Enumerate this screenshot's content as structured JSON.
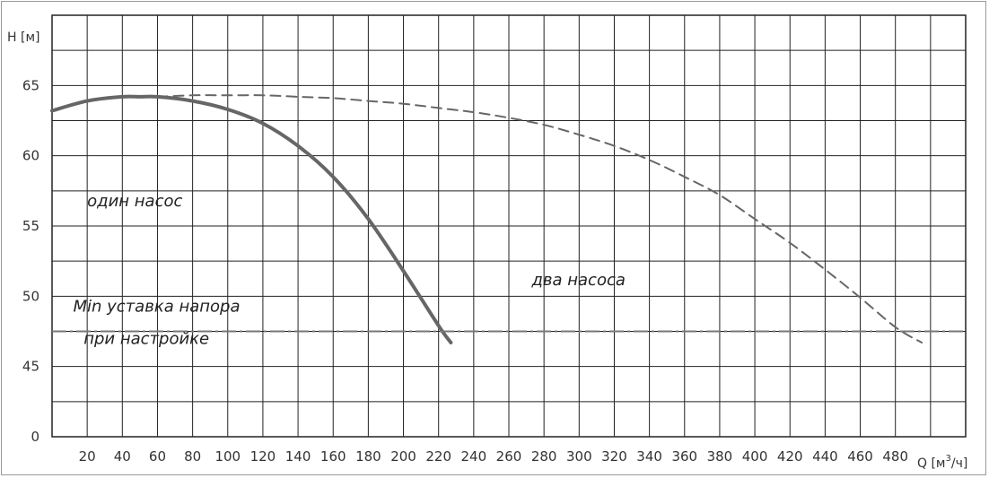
{
  "chart_data": {
    "type": "line",
    "xlabel": "Q [м",
    "xlabel_sup": "3",
    "xlabel_tail": "/ч]",
    "ylabel": "H [м]",
    "xlim": [
      0,
      520
    ],
    "ylim": [
      40,
      70
    ],
    "x_ticks": [
      20,
      40,
      60,
      80,
      100,
      120,
      140,
      160,
      180,
      200,
      220,
      240,
      260,
      280,
      300,
      320,
      340,
      360,
      380,
      400,
      420,
      440,
      460,
      480
    ],
    "y_ticks": [
      45,
      50,
      55,
      60,
      65
    ],
    "y_zero_label": "0",
    "grid": true,
    "series": [
      {
        "style": "solid",
        "x": [
          0,
          20,
          40,
          50,
          60,
          80,
          100,
          120,
          140,
          160,
          180,
          200,
          220,
          227
        ],
        "y": [
          63.2,
          63.9,
          64.2,
          64.2,
          64.2,
          63.9,
          63.3,
          62.3,
          60.7,
          58.5,
          55.5,
          51.8,
          47.9,
          46.7
        ]
      },
      {
        "style": "dashed",
        "x": [
          60,
          80,
          100,
          120,
          140,
          160,
          180,
          200,
          220,
          240,
          260,
          280,
          300,
          320,
          340,
          360,
          380,
          400,
          420,
          440,
          460,
          480,
          495
        ],
        "y": [
          64.2,
          64.3,
          64.3,
          64.3,
          64.2,
          64.1,
          63.9,
          63.7,
          63.4,
          63.1,
          62.7,
          62.2,
          61.5,
          60.7,
          59.7,
          58.5,
          57.2,
          55.5,
          53.8,
          51.9,
          49.9,
          47.8,
          46.7
        ]
      }
    ],
    "reference_line": {
      "y": 47.5,
      "style": "dash-dot"
    },
    "annotations": [
      {
        "text": "один насос",
        "x": 20,
        "y": 56.4
      },
      {
        "text": "два насоса",
        "x": 273,
        "y": 50.8
      },
      {
        "text": "Min уставка напора",
        "x": 12,
        "y": 48.9
      },
      {
        "text": "при настройке",
        "x": 18,
        "y": 46.6
      }
    ]
  }
}
